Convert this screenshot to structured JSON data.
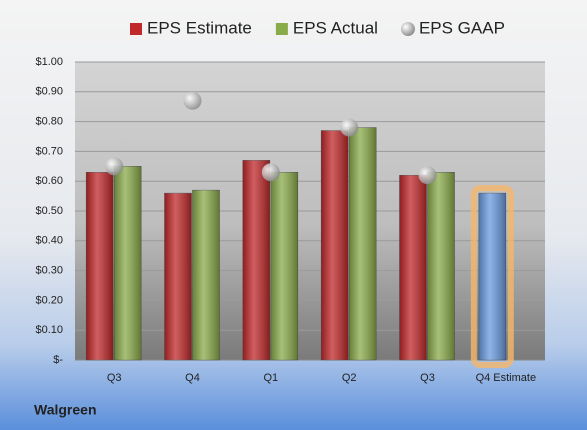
{
  "chart_data": {
    "type": "bar",
    "footer": "Walgreen",
    "categories": [
      "Q3",
      "Q4",
      "Q1",
      "Q2",
      "Q3",
      "Q4 Estimate"
    ],
    "series": [
      {
        "name": "EPS Estimate",
        "color": "#c0282a",
        "colors": [
          "#c0282a",
          "#c0282a",
          "#c0282a",
          "#c0282a",
          "#c0282a",
          "#6a9be0"
        ],
        "values": [
          0.63,
          0.56,
          0.67,
          0.77,
          0.62,
          0.56
        ]
      },
      {
        "name": "EPS Actual",
        "color": "#8aab4a",
        "values": [
          0.65,
          0.57,
          0.63,
          0.78,
          0.63,
          null
        ]
      },
      {
        "name": "EPS GAAP",
        "type": "scatter",
        "color": "#b8b8b8",
        "values": [
          0.65,
          0.87,
          0.63,
          0.78,
          0.62,
          null
        ]
      }
    ],
    "ylim": [
      0,
      1
    ],
    "yticks": [
      {
        "value": 0,
        "label": "$-"
      },
      {
        "value": 0.1,
        "label": "$0.10"
      },
      {
        "value": 0.2,
        "label": "$0.20"
      },
      {
        "value": 0.3,
        "label": "$0.30"
      },
      {
        "value": 0.4,
        "label": "$0.40"
      },
      {
        "value": 0.5,
        "label": "$0.50"
      },
      {
        "value": 0.6,
        "label": "$0.60"
      },
      {
        "value": 0.7,
        "label": "$0.70"
      },
      {
        "value": 0.8,
        "label": "$0.80"
      },
      {
        "value": 0.9,
        "label": "$0.90"
      },
      {
        "value": 1,
        "label": "$1.00"
      }
    ],
    "grid": true,
    "legend": "top"
  }
}
